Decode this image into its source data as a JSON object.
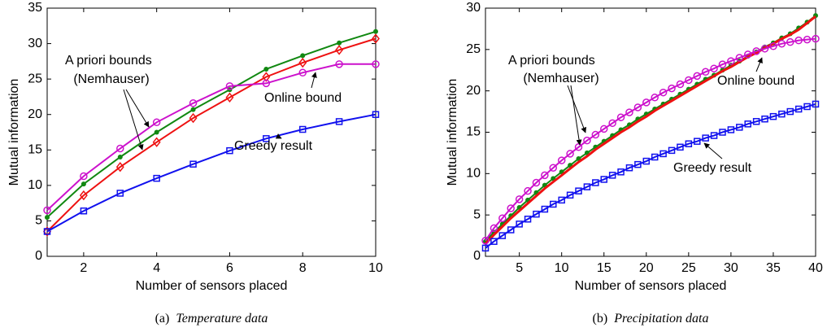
{
  "chart_data": [
    {
      "type": "line",
      "x": [
        1,
        2,
        3,
        4,
        5,
        6,
        7,
        8,
        9,
        10
      ],
      "xlim": [
        1,
        10
      ],
      "xticks": [
        2,
        4,
        6,
        8,
        10
      ],
      "ylim": [
        0,
        35
      ],
      "yticks": [
        0,
        5,
        10,
        15,
        20,
        25,
        30,
        35
      ],
      "xlabel": "Number of sensors placed",
      "ylabel": "Mutual information",
      "caption_label": "(a)",
      "caption": "Temperature data",
      "annotations": [
        "A priori bounds",
        "(Nemhauser)",
        "Online bound",
        "Greedy result"
      ],
      "series": [
        {
          "color": "#118811",
          "marker": "dot",
          "values": [
            5.5,
            10.2,
            14.0,
            17.5,
            20.7,
            23.5,
            26.4,
            28.3,
            30.1,
            31.7
          ]
        },
        {
          "color": "#ee1111",
          "marker": "diamond",
          "values": [
            3.5,
            8.6,
            12.6,
            16.1,
            19.5,
            22.4,
            25.3,
            27.3,
            29.1,
            30.7
          ]
        },
        {
          "color": "#cc11cc",
          "marker": "circle",
          "values": [
            6.5,
            11.3,
            15.2,
            18.9,
            21.6,
            24.0,
            24.4,
            25.9,
            27.1,
            27.1
          ]
        },
        {
          "color": "#1111ee",
          "marker": "square",
          "values": [
            3.5,
            6.4,
            8.9,
            11.0,
            13.0,
            14.9,
            16.6,
            17.9,
            19.0,
            20.0
          ]
        }
      ]
    },
    {
      "type": "line",
      "x": [
        1,
        2,
        3,
        4,
        5,
        6,
        7,
        8,
        9,
        10,
        11,
        12,
        13,
        14,
        15,
        16,
        17,
        18,
        19,
        20,
        21,
        22,
        23,
        24,
        25,
        26,
        27,
        28,
        29,
        30,
        31,
        32,
        33,
        34,
        35,
        36,
        37,
        38,
        39,
        40
      ],
      "xlim": [
        1,
        40
      ],
      "xticks": [
        5,
        10,
        15,
        20,
        25,
        30,
        35,
        40
      ],
      "ylim": [
        0,
        30
      ],
      "yticks": [
        0,
        5,
        10,
        15,
        20,
        25,
        30
      ],
      "xlabel": "Number of sensors placed",
      "ylabel": "Mutual information",
      "caption_label": "(b)",
      "caption": "Precipitation data",
      "annotations": [
        "A priori bounds",
        "(Nemhauser)",
        "Online bound",
        "Greedy result"
      ],
      "series": [
        {
          "color": "#118811",
          "marker": "dot",
          "values": [
            1.8,
            2.9,
            3.9,
            4.9,
            5.9,
            6.8,
            7.7,
            8.6,
            9.4,
            10.2,
            11.0,
            11.8,
            12.5,
            13.2,
            13.9,
            14.6,
            15.3,
            15.9,
            16.6,
            17.2,
            17.8,
            18.4,
            19.0,
            19.6,
            20.2,
            20.8,
            21.4,
            21.9,
            22.5,
            23.1,
            23.6,
            24.2,
            24.7,
            25.3,
            25.8,
            26.4,
            26.9,
            27.6,
            28.3,
            29.1
          ]
        },
        {
          "color": "#ee1111",
          "marker": "none",
          "values": [
            1.5,
            2.6,
            3.6,
            4.6,
            5.5,
            6.4,
            7.3,
            8.2,
            9.0,
            9.8,
            10.6,
            11.4,
            12.1,
            12.9,
            13.6,
            14.3,
            15.0,
            15.6,
            16.3,
            16.9,
            17.6,
            18.2,
            18.8,
            19.4,
            20.0,
            20.6,
            21.2,
            21.8,
            22.4,
            22.9,
            23.5,
            24.1,
            24.6,
            25.2,
            25.7,
            26.3,
            26.8,
            27.4,
            28.2,
            29.0
          ]
        },
        {
          "color": "#cc11cc",
          "marker": "circle",
          "values": [
            1.9,
            3.4,
            4.6,
            5.8,
            6.9,
            7.9,
            8.9,
            9.8,
            10.7,
            11.6,
            12.4,
            13.2,
            14.0,
            14.7,
            15.4,
            16.1,
            16.8,
            17.4,
            18.0,
            18.6,
            19.2,
            19.8,
            20.3,
            20.8,
            21.3,
            21.8,
            22.3,
            22.7,
            23.2,
            23.6,
            24.0,
            24.4,
            24.8,
            25.1,
            25.4,
            25.7,
            25.9,
            26.1,
            26.2,
            26.3
          ]
        },
        {
          "color": "#1111ee",
          "marker": "square",
          "values": [
            1.0,
            1.8,
            2.5,
            3.2,
            3.9,
            4.5,
            5.1,
            5.7,
            6.3,
            6.8,
            7.4,
            7.9,
            8.4,
            8.9,
            9.3,
            9.8,
            10.2,
            10.7,
            11.1,
            11.5,
            12.0,
            12.4,
            12.8,
            13.2,
            13.6,
            13.9,
            14.3,
            14.6,
            15.0,
            15.3,
            15.6,
            16.0,
            16.3,
            16.6,
            16.9,
            17.2,
            17.5,
            17.8,
            18.1,
            18.4
          ]
        }
      ]
    }
  ]
}
